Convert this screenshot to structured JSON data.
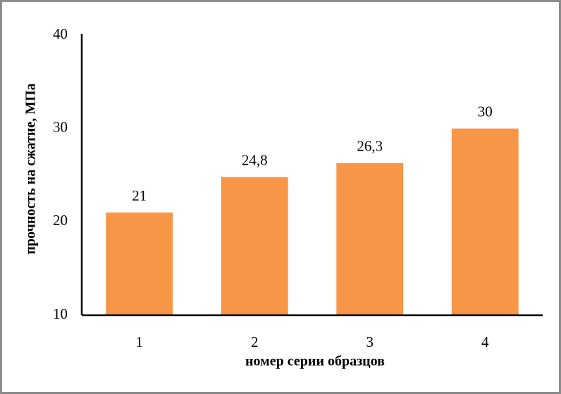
{
  "chart_data": {
    "type": "bar",
    "x_label": "номер серии образцов",
    "y_label": "прочность на сжатие, МПа",
    "categories": [
      "1",
      "2",
      "3",
      "4"
    ],
    "values": [
      21,
      24.8,
      26.3,
      30
    ],
    "value_labels": [
      "21",
      "24,8",
      "26,3",
      "30"
    ],
    "color": "#f79646",
    "ylim": [
      10,
      40
    ],
    "yticks": [
      10,
      20,
      30,
      40
    ],
    "grid": false
  }
}
